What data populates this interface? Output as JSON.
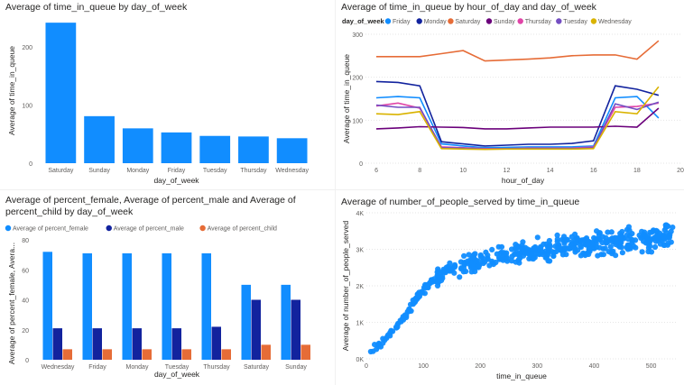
{
  "colors": {
    "bar_blue": "#118DFF",
    "dark_blue": "#12239E",
    "orange": "#E66C37",
    "purple": "#6B007B",
    "pink": "#E044A7",
    "violet": "#744EC2",
    "gold": "#D9B300",
    "axis_text": "#605E5C",
    "grid": "#E6E6E6"
  },
  "chart_data": [
    {
      "id": "c1",
      "type": "bar",
      "title": "Average of time_in_queue by day_of_week",
      "xlabel": "day_of_week",
      "ylabel": "Average of time_in_queue",
      "ylim": [
        0,
        250
      ],
      "yticks": [
        0,
        100,
        200
      ],
      "categories": [
        "Saturday",
        "Sunday",
        "Monday",
        "Friday",
        "Tuesday",
        "Thursday",
        "Wednesday"
      ],
      "values": [
        242,
        81,
        60,
        53,
        47,
        46,
        43
      ],
      "color": "#118DFF"
    },
    {
      "id": "c2",
      "type": "line",
      "title": "Average of time_in_queue by hour_of_day and day_of_week",
      "legend_title": "day_of_week",
      "xlabel": "hour_of_day",
      "ylabel": "Average of time_in_queue",
      "xlim": [
        5.5,
        20
      ],
      "xticks": [
        6,
        8,
        10,
        12,
        14,
        16,
        18,
        20
      ],
      "ylim": [
        0,
        300
      ],
      "yticks": [
        0,
        100,
        200,
        300
      ],
      "x": [
        6,
        7,
        8,
        9,
        10,
        11,
        12,
        13,
        14,
        15,
        16,
        17,
        18,
        19
      ],
      "series": [
        {
          "name": "Friday",
          "color": "#118DFF",
          "values": [
            152,
            155,
            152,
            45,
            40,
            36,
            37,
            38,
            38,
            38,
            40,
            152,
            155,
            105
          ]
        },
        {
          "name": "Monday",
          "color": "#12239E",
          "values": [
            190,
            188,
            180,
            50,
            45,
            40,
            42,
            44,
            44,
            46,
            52,
            180,
            172,
            158
          ]
        },
        {
          "name": "Saturday",
          "color": "#E66C37",
          "values": [
            248,
            248,
            248,
            255,
            262,
            238,
            240,
            242,
            245,
            250,
            252,
            252,
            242,
            285
          ]
        },
        {
          "name": "Sunday",
          "color": "#6B007B",
          "values": [
            80,
            82,
            85,
            84,
            83,
            80,
            80,
            82,
            84,
            84,
            84,
            86,
            84,
            128
          ]
        },
        {
          "name": "Thursday",
          "color": "#E044A7",
          "values": [
            133,
            140,
            128,
            38,
            36,
            34,
            34,
            35,
            35,
            35,
            38,
            130,
            132,
            140
          ]
        },
        {
          "name": "Tuesday",
          "color": "#744EC2",
          "values": [
            135,
            130,
            130,
            36,
            35,
            33,
            34,
            34,
            34,
            34,
            36,
            138,
            125,
            142
          ]
        },
        {
          "name": "Wednesday",
          "color": "#D9B300",
          "values": [
            115,
            113,
            120,
            34,
            33,
            32,
            33,
            33,
            33,
            33,
            34,
            120,
            115,
            178
          ]
        }
      ]
    },
    {
      "id": "c3",
      "type": "bar",
      "title_line1": "Average of percent_female, Average of percent_male and Average of",
      "title_line2": "percent_child by day_of_week",
      "xlabel": "day_of_week",
      "ylabel": "Average of percent_female, Avera...",
      "ylim": [
        0,
        80
      ],
      "yticks": [
        0,
        20,
        40,
        60,
        80
      ],
      "categories": [
        "Wednesday",
        "Friday",
        "Monday",
        "Tuesday",
        "Thursday",
        "Saturday",
        "Sunday"
      ],
      "series": [
        {
          "name": "Average of percent_female",
          "color": "#118DFF",
          "values": [
            72,
            71,
            71,
            71,
            71,
            50,
            50
          ]
        },
        {
          "name": "Average of percent_male",
          "color": "#12239E",
          "values": [
            21,
            21,
            21,
            21,
            22,
            40,
            40
          ]
        },
        {
          "name": "Average of percent_child",
          "color": "#E66C37",
          "values": [
            7,
            7,
            7,
            7,
            7,
            10,
            10
          ]
        }
      ]
    },
    {
      "id": "c4",
      "type": "scatter",
      "title": "Average of number_of_people_served by time_in_queue",
      "xlabel": "time_in_queue",
      "ylabel": "Average of number_of_people_served",
      "xlim": [
        0,
        545
      ],
      "xticks": [
        0,
        100,
        200,
        300,
        400,
        500
      ],
      "ylim": [
        0,
        4000
      ],
      "yticks": [
        0,
        1000,
        2000,
        3000,
        4000
      ],
      "ytick_labels": [
        "0K",
        "1K",
        "2K",
        "3K",
        "4K"
      ],
      "color": "#118DFF",
      "curve": {
        "x": [
          10,
          30,
          60,
          90,
          120,
          160,
          200,
          250,
          300,
          350,
          400,
          450,
          500,
          540
        ],
        "y": [
          250,
          500,
          1000,
          1700,
          2200,
          2500,
          2680,
          2860,
          3000,
          3080,
          3160,
          3230,
          3300,
          3360
        ]
      },
      "noise_amplitude": 180,
      "n_points": 520,
      "x_range": [
        5,
        540
      ]
    }
  ]
}
